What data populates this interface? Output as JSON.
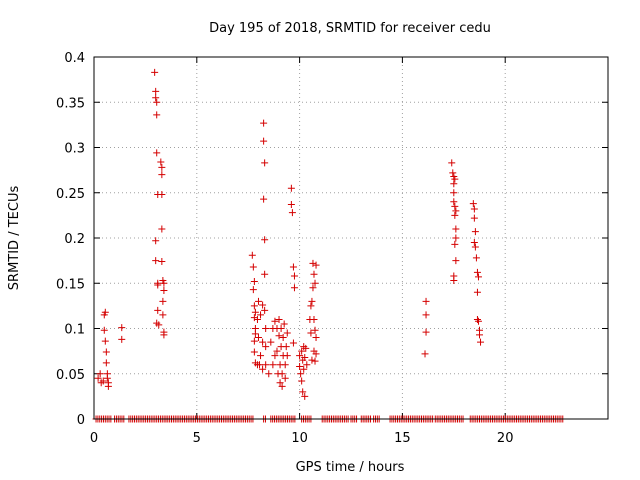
{
  "chart_data": {
    "type": "scatter",
    "title": "Day 195 of 2018, SRMTID for receiver cedu",
    "xlabel": "GPS time / hours",
    "ylabel": "SRMTID / TECUs",
    "xlim": [
      0,
      25
    ],
    "ylim": [
      0,
      0.4
    ],
    "xticks": [
      0,
      5,
      10,
      15,
      20
    ],
    "xtick_labels": [
      "0",
      "5",
      "10",
      "15",
      "20"
    ],
    "yticks": [
      0,
      0.05,
      0.1,
      0.15,
      0.2,
      0.25,
      0.3,
      0.35,
      0.4
    ],
    "ytick_labels": [
      "0",
      "0.05",
      "0.1",
      "0.15",
      "0.2",
      "0.25",
      "0.3",
      "0.35",
      "0.4"
    ],
    "grid": true,
    "marker": "plus",
    "series": [
      {
        "name": "SRMTID",
        "color": "#d40000",
        "points": [
          [
            0.2,
            0.045
          ],
          [
            0.3,
            0.05
          ],
          [
            0.35,
            0.04
          ],
          [
            0.45,
            0.042
          ],
          [
            0.5,
            0.115
          ],
          [
            0.5,
            0.098
          ],
          [
            0.55,
            0.118
          ],
          [
            0.55,
            0.086
          ],
          [
            0.6,
            0.062
          ],
          [
            0.6,
            0.074
          ],
          [
            0.65,
            0.05
          ],
          [
            0.65,
            0.045
          ],
          [
            0.7,
            0.04
          ],
          [
            0.7,
            0.036
          ],
          [
            1.35,
            0.101
          ],
          [
            1.35,
            0.088
          ],
          [
            2.95,
            0.383
          ],
          [
            3.0,
            0.362
          ],
          [
            3.0,
            0.355
          ],
          [
            3.05,
            0.35
          ],
          [
            3.05,
            0.336
          ],
          [
            3.05,
            0.294
          ],
          [
            3.1,
            0.248
          ],
          [
            3.0,
            0.197
          ],
          [
            3.0,
            0.175
          ],
          [
            3.1,
            0.15
          ],
          [
            3.1,
            0.148
          ],
          [
            3.05,
            0.106
          ],
          [
            3.1,
            0.12
          ],
          [
            3.15,
            0.104
          ],
          [
            3.25,
            0.284
          ],
          [
            3.3,
            0.278
          ],
          [
            3.3,
            0.27
          ],
          [
            3.3,
            0.248
          ],
          [
            3.3,
            0.21
          ],
          [
            3.3,
            0.174
          ],
          [
            3.35,
            0.153
          ],
          [
            3.4,
            0.15
          ],
          [
            3.4,
            0.142
          ],
          [
            3.35,
            0.13
          ],
          [
            3.35,
            0.115
          ],
          [
            3.4,
            0.096
          ],
          [
            3.4,
            0.093
          ],
          [
            7.7,
            0.181
          ],
          [
            7.75,
            0.168
          ],
          [
            7.8,
            0.152
          ],
          [
            7.75,
            0.143
          ],
          [
            7.8,
            0.125
          ],
          [
            7.85,
            0.118
          ],
          [
            7.8,
            0.112
          ],
          [
            7.85,
            0.1
          ],
          [
            7.85,
            0.094
          ],
          [
            7.8,
            0.086
          ],
          [
            7.8,
            0.074
          ],
          [
            7.85,
            0.062
          ],
          [
            7.95,
            0.06
          ],
          [
            7.95,
            0.11
          ],
          [
            8.0,
            0.13
          ],
          [
            8.0,
            0.09
          ],
          [
            8.05,
            0.06
          ],
          [
            8.1,
            0.115
          ],
          [
            8.1,
            0.07
          ],
          [
            8.2,
            0.126
          ],
          [
            8.2,
            0.085
          ],
          [
            8.2,
            0.055
          ],
          [
            8.25,
            0.327
          ],
          [
            8.25,
            0.307
          ],
          [
            8.3,
            0.283
          ],
          [
            8.25,
            0.243
          ],
          [
            8.3,
            0.198
          ],
          [
            8.3,
            0.16
          ],
          [
            8.3,
            0.12
          ],
          [
            8.35,
            0.1
          ],
          [
            8.35,
            0.08
          ],
          [
            8.35,
            0.06
          ],
          [
            8.5,
            0.05
          ],
          [
            8.6,
            0.085
          ],
          [
            8.7,
            0.1
          ],
          [
            8.7,
            0.06
          ],
          [
            8.8,
            0.108
          ],
          [
            8.8,
            0.07
          ],
          [
            8.9,
            0.1
          ],
          [
            8.9,
            0.075
          ],
          [
            8.95,
            0.05
          ],
          [
            9.0,
            0.11
          ],
          [
            9.0,
            0.092
          ],
          [
            9.05,
            0.06
          ],
          [
            9.05,
            0.04
          ],
          [
            9.1,
            0.1
          ],
          [
            9.1,
            0.08
          ],
          [
            9.15,
            0.05
          ],
          [
            9.15,
            0.036
          ],
          [
            9.2,
            0.09
          ],
          [
            9.2,
            0.07
          ],
          [
            9.25,
            0.105
          ],
          [
            9.3,
            0.06
          ],
          [
            9.3,
            0.045
          ],
          [
            9.35,
            0.08
          ],
          [
            9.4,
            0.095
          ],
          [
            9.4,
            0.07
          ],
          [
            9.6,
            0.255
          ],
          [
            9.6,
            0.237
          ],
          [
            9.65,
            0.228
          ],
          [
            9.7,
            0.168
          ],
          [
            9.75,
            0.158
          ],
          [
            9.75,
            0.145
          ],
          [
            9.7,
            0.084
          ],
          [
            10.0,
            0.07
          ],
          [
            10.0,
            0.058
          ],
          [
            10.05,
            0.05
          ],
          [
            10.1,
            0.075
          ],
          [
            10.1,
            0.042
          ],
          [
            10.15,
            0.065
          ],
          [
            10.15,
            0.03
          ],
          [
            10.2,
            0.08
          ],
          [
            10.2,
            0.055
          ],
          [
            10.25,
            0.068
          ],
          [
            10.25,
            0.025
          ],
          [
            10.3,
            0.078
          ],
          [
            10.35,
            0.06
          ],
          [
            10.5,
            0.11
          ],
          [
            10.55,
            0.125
          ],
          [
            10.55,
            0.095
          ],
          [
            10.6,
            0.13
          ],
          [
            10.6,
            0.065
          ],
          [
            10.65,
            0.172
          ],
          [
            10.65,
            0.145
          ],
          [
            10.7,
            0.16
          ],
          [
            10.7,
            0.11
          ],
          [
            10.7,
            0.075
          ],
          [
            10.75,
            0.15
          ],
          [
            10.75,
            0.098
          ],
          [
            10.75,
            0.064
          ],
          [
            10.8,
            0.17
          ],
          [
            10.8,
            0.09
          ],
          [
            10.8,
            0.072
          ],
          [
            16.15,
            0.13
          ],
          [
            16.15,
            0.115
          ],
          [
            16.15,
            0.096
          ],
          [
            16.1,
            0.072
          ],
          [
            17.4,
            0.283
          ],
          [
            17.45,
            0.272
          ],
          [
            17.5,
            0.268
          ],
          [
            17.5,
            0.26
          ],
          [
            17.55,
            0.265
          ],
          [
            17.5,
            0.25
          ],
          [
            17.5,
            0.24
          ],
          [
            17.55,
            0.235
          ],
          [
            17.6,
            0.23
          ],
          [
            17.55,
            0.225
          ],
          [
            17.6,
            0.21
          ],
          [
            17.6,
            0.2
          ],
          [
            17.55,
            0.193
          ],
          [
            17.6,
            0.175
          ],
          [
            17.5,
            0.158
          ],
          [
            17.5,
            0.153
          ],
          [
            18.45,
            0.238
          ],
          [
            18.5,
            0.232
          ],
          [
            18.5,
            0.222
          ],
          [
            18.55,
            0.207
          ],
          [
            18.5,
            0.195
          ],
          [
            18.55,
            0.19
          ],
          [
            18.6,
            0.178
          ],
          [
            18.65,
            0.162
          ],
          [
            18.7,
            0.157
          ],
          [
            18.65,
            0.14
          ],
          [
            18.65,
            0.11
          ],
          [
            18.7,
            0.108
          ],
          [
            18.75,
            0.098
          ],
          [
            18.75,
            0.093
          ],
          [
            18.8,
            0.085
          ]
        ]
      }
    ],
    "zero_segments": [
      [
        0.1,
        0.85
      ],
      [
        1.0,
        1.45
      ],
      [
        1.7,
        3.5
      ],
      [
        3.5,
        7.8
      ],
      [
        8.25,
        8.35
      ],
      [
        8.6,
        9.8
      ],
      [
        10.1,
        10.6
      ],
      [
        11.1,
        12.4
      ],
      [
        12.5,
        12.8
      ],
      [
        13.0,
        13.5
      ],
      [
        13.6,
        13.9
      ],
      [
        14.4,
        16.5
      ],
      [
        16.6,
        18.0
      ],
      [
        18.3,
        22.8
      ]
    ]
  }
}
